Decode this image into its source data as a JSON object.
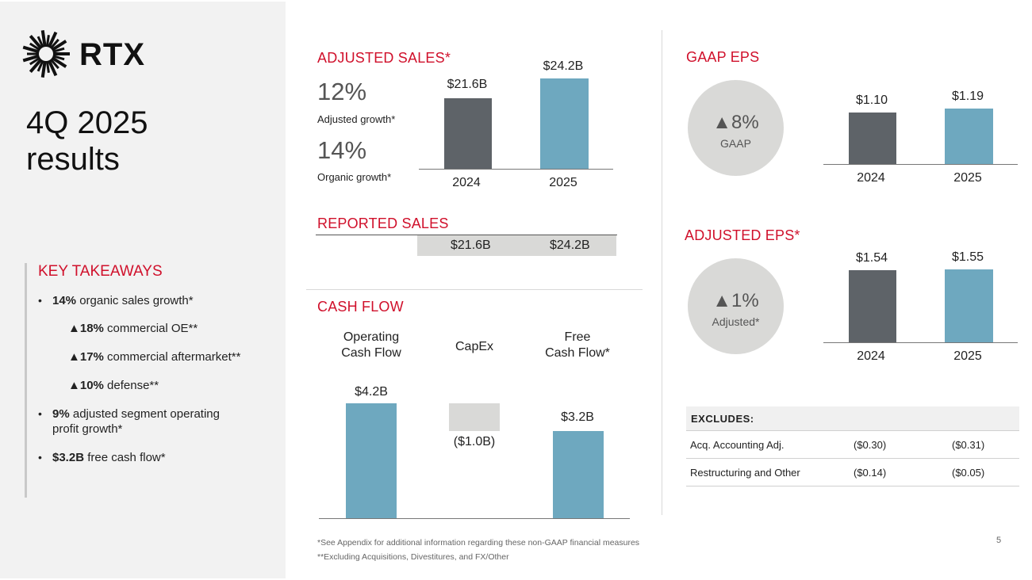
{
  "brand": {
    "name": "RTX",
    "accent_color": "#d0102b",
    "logo_icon": "rtx-sunburst-logo"
  },
  "title": {
    "line1": "4Q 2025",
    "line2": "results"
  },
  "takeaways": {
    "heading": "KEY TAKEAWAYS",
    "items": [
      {
        "bold": "14%",
        "text": " organic sales growth*"
      },
      {
        "bold": "▲18%",
        "text": " commercial OE**"
      },
      {
        "bold": "▲17%",
        "text": " commercial aftermarket**"
      },
      {
        "bold": "▲10%",
        "text": " defense**"
      },
      {
        "bold": "9%",
        "text": " adjusted segment operating",
        "text2": "profit growth*"
      },
      {
        "bold": "$3.2B",
        "text": " free cash flow*"
      }
    ],
    "bullet": "•"
  },
  "adjusted_sales": {
    "heading": "ADJUSTED SALES*",
    "adjusted_growth_value": "12%",
    "adjusted_growth_label": "Adjusted growth*",
    "organic_growth_value": "14%",
    "organic_growth_label": "Organic growth*"
  },
  "reported_sales": {
    "heading": "REPORTED SALES",
    "v2024": "$21.6B",
    "v2025": "$24.2B"
  },
  "cash_flow": {
    "heading": "CASH FLOW",
    "col1_line1": "Operating",
    "col1_line2": "Cash Flow",
    "col2": "CapEx",
    "col3_line1": "Free",
    "col3_line2": "Cash Flow*"
  },
  "gaap_eps": {
    "heading": "GAAP EPS",
    "circle_pct": "▲8%",
    "circle_label": "GAAP"
  },
  "adjusted_eps": {
    "heading": "ADJUSTED EPS*",
    "circle_pct": "▲1%",
    "circle_label": "Adjusted*"
  },
  "excludes": {
    "heading": "EXCLUDES:",
    "rows": [
      {
        "label": "Acq. Accounting Adj.",
        "v2024": "($0.30)",
        "v2025": "($0.31)"
      },
      {
        "label": "Restructuring and Other",
        "v2024": "($0.14)",
        "v2025": "($0.05)"
      }
    ]
  },
  "footnotes": {
    "note1": "*See Appendix for additional information regarding these non-GAAP financial measures",
    "note2": "**Excluding Acquisitions, Divestitures, and FX/Other"
  },
  "page_number": "5",
  "colors": {
    "bar_2024": "#5e6368",
    "bar_2025": "#6ea8bf",
    "circle": "#d9d9d7",
    "capex": "#d9d9d7"
  },
  "chart_data": [
    {
      "type": "bar",
      "title": "ADJUSTED SALES*",
      "categories": [
        "2024",
        "2025"
      ],
      "values": [
        21.6,
        24.2
      ],
      "labels": [
        "$21.6B",
        "$24.2B"
      ]
    },
    {
      "type": "bar",
      "title": "GAAP EPS",
      "categories": [
        "2024",
        "2025"
      ],
      "values": [
        1.1,
        1.19
      ],
      "labels": [
        "$1.10",
        "$1.19"
      ]
    },
    {
      "type": "bar",
      "title": "ADJUSTED EPS*",
      "categories": [
        "2024",
        "2025"
      ],
      "values": [
        1.54,
        1.55
      ],
      "labels": [
        "$1.54",
        "$1.55"
      ]
    },
    {
      "type": "bar",
      "title": "CASH FLOW",
      "categories": [
        "Operating Cash Flow",
        "CapEx",
        "Free Cash Flow*"
      ],
      "values": [
        4.2,
        -1.0,
        3.2
      ],
      "labels": [
        "$4.2B",
        "($1.0B)",
        "$3.2B"
      ]
    }
  ]
}
